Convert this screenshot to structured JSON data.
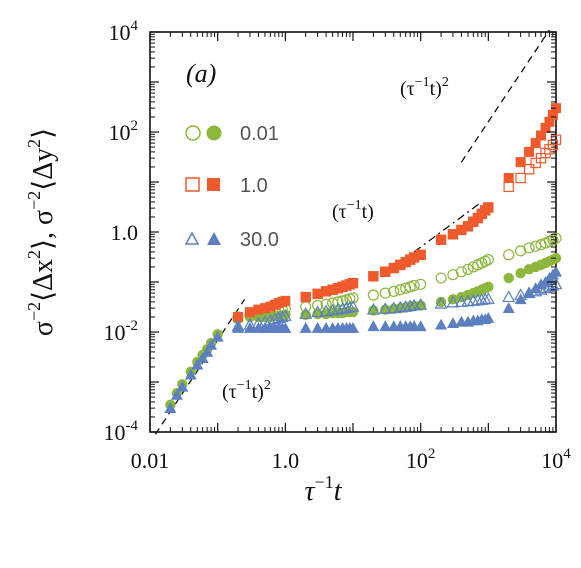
{
  "chart_data": {
    "type": "scatter",
    "panel_label": "(a)",
    "xlabel": "τ⁻¹t",
    "ylabel": "σ⁻²⟨Δx²⟩, σ⁻²⟨Δy²⟩",
    "xscale": "log",
    "yscale": "log",
    "xlim": [
      0.01,
      10000
    ],
    "ylim": [
      0.0001,
      10000
    ],
    "x_ticks": [
      {
        "value": 0.01,
        "label": "0.01"
      },
      {
        "value": 1,
        "label": "1.0"
      },
      {
        "value": 100,
        "label": "10",
        "sup": "2"
      },
      {
        "value": 10000,
        "label": "10",
        "sup": "4"
      }
    ],
    "y_ticks": [
      {
        "value": 0.0001,
        "label": "10",
        "sup": "-4"
      },
      {
        "value": 0.01,
        "label": "10",
        "sup": "-2"
      },
      {
        "value": 1,
        "label": "1.0"
      },
      {
        "value": 100,
        "label": "10",
        "sup": "2"
      },
      {
        "value": 10000,
        "label": "10",
        "sup": "4"
      }
    ],
    "colors": {
      "green": "#8cb63c",
      "orange": "#ee5a2c",
      "blue": "#5b7fc0"
    },
    "legend": {
      "placement": "upper-left",
      "entries": [
        {
          "label": "0.01",
          "color": "#8cb63c",
          "marker": "circle"
        },
        {
          "label": "1.0",
          "color": "#ee5a2c",
          "marker": "square"
        },
        {
          "label": "30.0",
          "color": "#5b7fc0",
          "marker": "triangle"
        }
      ]
    },
    "annotations": [
      {
        "text": "(τ⁻¹t)²",
        "near": "lower-left guide"
      },
      {
        "text": "(τ⁻¹t)",
        "near": "middle guide"
      },
      {
        "text": "(τ⁻¹t)²",
        "near": "upper-right guide"
      }
    ],
    "guide_lines": [
      {
        "style": "dashed",
        "x": [
          0.012,
          0.25
        ],
        "y": [
          9e-05,
          0.045
        ]
      },
      {
        "style": "dashdot",
        "x": [
          30,
          800
        ],
        "y": [
          0.15,
          4
        ]
      },
      {
        "style": "dashed",
        "x": [
          400,
          8000
        ],
        "y": [
          25,
          11000
        ]
      }
    ],
    "series": [
      {
        "name": "0.01",
        "component": "x",
        "color": "#8cb63c",
        "marker": "circle",
        "filled": true,
        "x": [
          0.02,
          0.025,
          0.03,
          0.04,
          0.05,
          0.06,
          0.07,
          0.08,
          0.1,
          0.2,
          0.3,
          0.4,
          0.5,
          0.6,
          0.7,
          0.8,
          0.9,
          1.0,
          2,
          3,
          4,
          5,
          6,
          7,
          8,
          9,
          10,
          20,
          30,
          40,
          50,
          60,
          70,
          80,
          100,
          200,
          300,
          400,
          500,
          600,
          700,
          800,
          900,
          1000,
          2000,
          3000,
          4000,
          5000,
          6000,
          7000,
          8000,
          9000,
          10000
        ],
        "y": [
          0.00035,
          0.0006,
          0.0009,
          0.0016,
          0.0025,
          0.0035,
          0.0045,
          0.006,
          0.009,
          0.018,
          0.02,
          0.02,
          0.02,
          0.02,
          0.021,
          0.021,
          0.021,
          0.022,
          0.022,
          0.023,
          0.023,
          0.024,
          0.024,
          0.024,
          0.025,
          0.025,
          0.025,
          0.027,
          0.028,
          0.029,
          0.03,
          0.031,
          0.032,
          0.033,
          0.034,
          0.04,
          0.045,
          0.05,
          0.055,
          0.06,
          0.065,
          0.07,
          0.075,
          0.08,
          0.12,
          0.15,
          0.18,
          0.2,
          0.22,
          0.24,
          0.26,
          0.28,
          0.3
        ]
      },
      {
        "name": "0.01",
        "component": "y",
        "color": "#8cb63c",
        "marker": "circle",
        "filled": false,
        "x": [
          0.2,
          0.3,
          0.4,
          0.5,
          0.6,
          0.7,
          0.8,
          0.9,
          1.0,
          2,
          3,
          4,
          5,
          6,
          7,
          8,
          9,
          10,
          20,
          30,
          40,
          50,
          60,
          70,
          80,
          100,
          200,
          300,
          400,
          500,
          600,
          700,
          800,
          900,
          1000,
          2000,
          3000,
          4000,
          5000,
          6000,
          7000,
          8000,
          9000,
          10000
        ],
        "y": [
          0.02,
          0.022,
          0.023,
          0.024,
          0.025,
          0.026,
          0.027,
          0.028,
          0.029,
          0.032,
          0.034,
          0.036,
          0.038,
          0.04,
          0.042,
          0.044,
          0.046,
          0.048,
          0.055,
          0.06,
          0.065,
          0.07,
          0.075,
          0.08,
          0.085,
          0.09,
          0.12,
          0.14,
          0.16,
          0.18,
          0.2,
          0.22,
          0.24,
          0.26,
          0.28,
          0.35,
          0.42,
          0.48,
          0.52,
          0.56,
          0.6,
          0.65,
          0.7,
          0.75
        ]
      },
      {
        "name": "1.0",
        "component": "x",
        "color": "#ee5a2c",
        "marker": "square",
        "filled": true,
        "x": [
          0.2,
          0.3,
          0.4,
          0.5,
          0.6,
          0.7,
          0.8,
          0.9,
          1.0,
          2,
          3,
          4,
          5,
          6,
          7,
          8,
          9,
          10,
          20,
          30,
          40,
          50,
          60,
          70,
          80,
          100,
          200,
          300,
          400,
          500,
          600,
          700,
          800,
          900,
          1000,
          2000,
          3000,
          4000,
          5000,
          6000,
          7000,
          8000,
          9000,
          10000
        ],
        "y": [
          0.02,
          0.025,
          0.028,
          0.03,
          0.032,
          0.035,
          0.038,
          0.04,
          0.042,
          0.05,
          0.058,
          0.065,
          0.07,
          0.075,
          0.08,
          0.085,
          0.09,
          0.095,
          0.13,
          0.16,
          0.19,
          0.22,
          0.25,
          0.28,
          0.31,
          0.35,
          0.7,
          0.9,
          1.1,
          1.3,
          1.6,
          1.9,
          2.3,
          2.7,
          3.1,
          12,
          25,
          40,
          60,
          85,
          120,
          160,
          220,
          300
        ]
      },
      {
        "name": "1.0",
        "component": "y",
        "color": "#ee5a2c",
        "marker": "square",
        "filled": false,
        "x": [
          2,
          3,
          4,
          5,
          6,
          7,
          8,
          9,
          10,
          20,
          30,
          40,
          50,
          60,
          70,
          80,
          100,
          200,
          300,
          400,
          500,
          600,
          700,
          800,
          900,
          1000,
          2000,
          3000,
          4000,
          5000,
          6000,
          7000,
          8000,
          9000,
          10000
        ],
        "y": [
          0.05,
          0.058,
          0.065,
          0.07,
          0.075,
          0.08,
          0.085,
          0.09,
          0.095,
          0.13,
          0.16,
          0.19,
          0.22,
          0.25,
          0.28,
          0.31,
          0.35,
          0.7,
          0.9,
          1.1,
          1.3,
          1.6,
          1.9,
          2.3,
          2.7,
          3.1,
          8,
          12,
          18,
          24,
          30,
          38,
          45,
          55,
          70
        ]
      },
      {
        "name": "30.0",
        "component": "x",
        "color": "#5b7fc0",
        "marker": "triangle",
        "filled": true,
        "x": [
          0.02,
          0.025,
          0.03,
          0.04,
          0.05,
          0.06,
          0.07,
          0.08,
          0.1,
          0.2,
          0.3,
          0.4,
          0.5,
          0.6,
          0.7,
          0.8,
          0.9,
          1.0,
          2,
          3,
          4,
          5,
          6,
          7,
          8,
          9,
          10,
          20,
          30,
          40,
          50,
          60,
          70,
          80,
          100,
          200,
          300,
          400,
          500,
          600,
          700,
          800,
          900,
          1000,
          2000,
          3000,
          4000,
          5000,
          6000,
          7000,
          8000,
          9000,
          10000
        ],
        "y": [
          0.0003,
          0.00055,
          0.0008,
          0.0014,
          0.0022,
          0.003,
          0.004,
          0.0055,
          0.008,
          0.012,
          0.012,
          0.012,
          0.012,
          0.012,
          0.012,
          0.012,
          0.012,
          0.012,
          0.012,
          0.012,
          0.012,
          0.012,
          0.012,
          0.012,
          0.012,
          0.012,
          0.012,
          0.013,
          0.013,
          0.013,
          0.013,
          0.013,
          0.013,
          0.013,
          0.013,
          0.014,
          0.015,
          0.016,
          0.016,
          0.017,
          0.017,
          0.018,
          0.018,
          0.019,
          0.03,
          0.045,
          0.06,
          0.075,
          0.09,
          0.1,
          0.12,
          0.14,
          0.16
        ]
      },
      {
        "name": "30.0",
        "component": "y",
        "color": "#5b7fc0",
        "marker": "triangle",
        "filled": false,
        "x": [
          0.2,
          0.3,
          0.4,
          0.5,
          0.6,
          0.7,
          0.8,
          0.9,
          1.0,
          2,
          3,
          4,
          5,
          6,
          7,
          8,
          9,
          10,
          20,
          30,
          40,
          50,
          60,
          70,
          80,
          100,
          200,
          300,
          400,
          500,
          600,
          700,
          800,
          900,
          1000,
          2000,
          3000,
          4000,
          5000,
          6000,
          7000,
          8000,
          9000,
          10000
        ],
        "y": [
          0.013,
          0.014,
          0.015,
          0.016,
          0.017,
          0.018,
          0.019,
          0.02,
          0.021,
          0.023,
          0.025,
          0.026,
          0.027,
          0.028,
          0.029,
          0.03,
          0.031,
          0.032,
          0.028,
          0.029,
          0.03,
          0.031,
          0.032,
          0.033,
          0.034,
          0.035,
          0.037,
          0.039,
          0.04,
          0.041,
          0.042,
          0.043,
          0.044,
          0.045,
          0.046,
          0.05,
          0.055,
          0.06,
          0.065,
          0.07,
          0.075,
          0.08,
          0.085,
          0.09
        ]
      }
    ]
  }
}
